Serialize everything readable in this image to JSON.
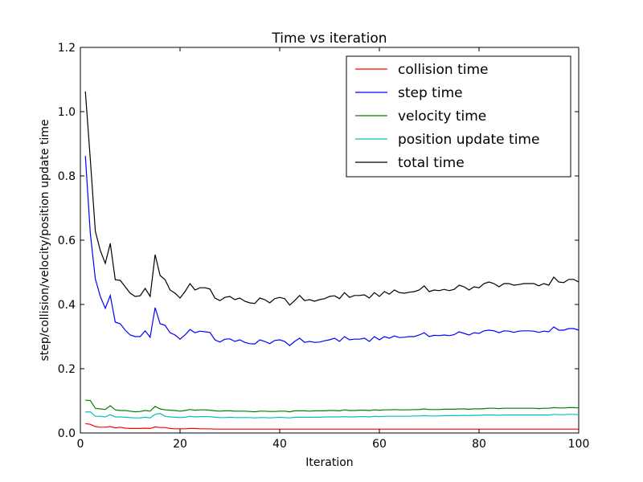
{
  "chart_data": {
    "type": "line",
    "title": "Time vs iteration",
    "xlabel": "Iteration",
    "ylabel": "step/collision/velocity/position update time",
    "xlim": [
      0,
      100
    ],
    "ylim": [
      0.0,
      1.2
    ],
    "xticks": [
      0,
      20,
      40,
      60,
      80,
      100
    ],
    "xtick_labels": [
      "0",
      "20",
      "40",
      "60",
      "80",
      "100"
    ],
    "yticks": [
      0.0,
      0.2,
      0.4,
      0.6,
      0.8,
      1.0,
      1.2
    ],
    "ytick_labels": [
      "0.0",
      "0.2",
      "0.4",
      "0.6",
      "0.8",
      "1.0",
      "1.2"
    ],
    "grid": false,
    "legend_position": "top-right",
    "x": [
      1,
      2,
      3,
      4,
      5,
      6,
      7,
      8,
      9,
      10,
      11,
      12,
      13,
      14,
      15,
      16,
      17,
      18,
      19,
      20,
      21,
      22,
      23,
      24,
      25,
      26,
      27,
      28,
      29,
      30,
      31,
      32,
      33,
      34,
      35,
      36,
      37,
      38,
      39,
      40,
      41,
      42,
      43,
      44,
      45,
      46,
      47,
      48,
      49,
      50,
      51,
      52,
      53,
      54,
      55,
      56,
      57,
      58,
      59,
      60,
      61,
      62,
      63,
      64,
      65,
      66,
      67,
      68,
      69,
      70,
      71,
      72,
      73,
      74,
      75,
      76,
      77,
      78,
      79,
      80,
      81,
      82,
      83,
      84,
      85,
      86,
      87,
      88,
      89,
      90,
      91,
      92,
      93,
      94,
      95,
      96,
      97,
      98,
      99,
      100
    ],
    "series": [
      {
        "name": "collision time",
        "color": "#ff0000",
        "values": [
          0.029,
          0.027,
          0.02,
          0.018,
          0.018,
          0.02,
          0.016,
          0.018,
          0.015,
          0.014,
          0.014,
          0.014,
          0.015,
          0.014,
          0.019,
          0.017,
          0.017,
          0.014,
          0.013,
          0.013,
          0.013,
          0.014,
          0.014,
          0.013,
          0.013,
          0.013,
          0.012,
          0.012,
          0.012,
          0.012,
          0.012,
          0.012,
          0.012,
          0.012,
          0.012,
          0.012,
          0.012,
          0.012,
          0.012,
          0.012,
          0.012,
          0.012,
          0.012,
          0.012,
          0.012,
          0.012,
          0.012,
          0.012,
          0.012,
          0.012,
          0.012,
          0.012,
          0.012,
          0.012,
          0.012,
          0.012,
          0.012,
          0.012,
          0.012,
          0.012,
          0.012,
          0.012,
          0.012,
          0.012,
          0.012,
          0.012,
          0.012,
          0.012,
          0.012,
          0.012,
          0.012,
          0.012,
          0.012,
          0.012,
          0.012,
          0.012,
          0.012,
          0.012,
          0.012,
          0.012,
          0.012,
          0.012,
          0.012,
          0.012,
          0.012,
          0.012,
          0.012,
          0.012,
          0.012,
          0.012,
          0.012,
          0.012,
          0.012,
          0.012,
          0.012,
          0.012,
          0.012,
          0.012,
          0.012,
          0.012
        ]
      },
      {
        "name": "step time",
        "color": "#0000ff",
        "values": [
          0.862,
          0.62,
          0.48,
          0.425,
          0.388,
          0.428,
          0.345,
          0.34,
          0.32,
          0.305,
          0.3,
          0.3,
          0.318,
          0.298,
          0.39,
          0.34,
          0.335,
          0.312,
          0.305,
          0.292,
          0.305,
          0.322,
          0.312,
          0.317,
          0.315,
          0.313,
          0.29,
          0.283,
          0.292,
          0.293,
          0.285,
          0.29,
          0.282,
          0.278,
          0.277,
          0.29,
          0.285,
          0.278,
          0.288,
          0.29,
          0.285,
          0.272,
          0.285,
          0.295,
          0.282,
          0.285,
          0.282,
          0.283,
          0.287,
          0.29,
          0.295,
          0.285,
          0.3,
          0.29,
          0.292,
          0.292,
          0.295,
          0.285,
          0.3,
          0.29,
          0.3,
          0.295,
          0.302,
          0.297,
          0.298,
          0.3,
          0.3,
          0.305,
          0.312,
          0.3,
          0.304,
          0.303,
          0.305,
          0.303,
          0.306,
          0.315,
          0.31,
          0.305,
          0.312,
          0.31,
          0.318,
          0.32,
          0.318,
          0.312,
          0.318,
          0.317,
          0.313,
          0.317,
          0.318,
          0.318,
          0.317,
          0.313,
          0.317,
          0.315,
          0.33,
          0.32,
          0.32,
          0.325,
          0.325,
          0.32
        ]
      },
      {
        "name": "velocity time",
        "color": "#008000",
        "values": [
          0.102,
          0.101,
          0.077,
          0.075,
          0.073,
          0.085,
          0.072,
          0.07,
          0.07,
          0.068,
          0.066,
          0.067,
          0.07,
          0.068,
          0.083,
          0.075,
          0.072,
          0.071,
          0.07,
          0.068,
          0.07,
          0.073,
          0.071,
          0.072,
          0.072,
          0.071,
          0.069,
          0.068,
          0.069,
          0.069,
          0.068,
          0.068,
          0.068,
          0.067,
          0.066,
          0.068,
          0.068,
          0.067,
          0.067,
          0.068,
          0.068,
          0.066,
          0.069,
          0.069,
          0.069,
          0.068,
          0.069,
          0.069,
          0.069,
          0.07,
          0.07,
          0.069,
          0.072,
          0.07,
          0.07,
          0.071,
          0.071,
          0.07,
          0.072,
          0.071,
          0.072,
          0.072,
          0.073,
          0.072,
          0.072,
          0.072,
          0.073,
          0.073,
          0.075,
          0.073,
          0.073,
          0.073,
          0.074,
          0.074,
          0.074,
          0.075,
          0.075,
          0.074,
          0.075,
          0.075,
          0.076,
          0.077,
          0.077,
          0.076,
          0.077,
          0.077,
          0.077,
          0.077,
          0.077,
          0.077,
          0.077,
          0.076,
          0.077,
          0.077,
          0.079,
          0.078,
          0.078,
          0.079,
          0.079,
          0.078
        ]
      },
      {
        "name": "position update time",
        "color": "#00bfbf",
        "values": [
          0.065,
          0.066,
          0.052,
          0.052,
          0.05,
          0.057,
          0.05,
          0.05,
          0.049,
          0.048,
          0.047,
          0.047,
          0.049,
          0.047,
          0.058,
          0.061,
          0.052,
          0.05,
          0.049,
          0.048,
          0.049,
          0.052,
          0.05,
          0.051,
          0.051,
          0.051,
          0.049,
          0.048,
          0.048,
          0.049,
          0.048,
          0.048,
          0.048,
          0.048,
          0.047,
          0.048,
          0.048,
          0.047,
          0.048,
          0.049,
          0.048,
          0.047,
          0.049,
          0.049,
          0.049,
          0.049,
          0.049,
          0.049,
          0.05,
          0.05,
          0.05,
          0.05,
          0.051,
          0.05,
          0.05,
          0.051,
          0.051,
          0.05,
          0.052,
          0.051,
          0.052,
          0.052,
          0.052,
          0.052,
          0.052,
          0.052,
          0.053,
          0.053,
          0.054,
          0.053,
          0.053,
          0.053,
          0.054,
          0.054,
          0.054,
          0.054,
          0.055,
          0.054,
          0.055,
          0.055,
          0.056,
          0.056,
          0.056,
          0.055,
          0.056,
          0.056,
          0.056,
          0.056,
          0.056,
          0.056,
          0.056,
          0.056,
          0.056,
          0.056,
          0.058,
          0.057,
          0.057,
          0.058,
          0.058,
          0.057
        ]
      },
      {
        "name": "total time",
        "color": "#000000",
        "values": [
          1.063,
          0.85,
          0.628,
          0.568,
          0.528,
          0.59,
          0.477,
          0.475,
          0.455,
          0.435,
          0.425,
          0.427,
          0.45,
          0.425,
          0.555,
          0.49,
          0.477,
          0.445,
          0.435,
          0.42,
          0.44,
          0.465,
          0.445,
          0.452,
          0.452,
          0.448,
          0.42,
          0.412,
          0.422,
          0.425,
          0.415,
          0.42,
          0.41,
          0.405,
          0.403,
          0.42,
          0.415,
          0.405,
          0.418,
          0.422,
          0.418,
          0.398,
          0.412,
          0.428,
          0.412,
          0.415,
          0.41,
          0.415,
          0.418,
          0.425,
          0.427,
          0.418,
          0.437,
          0.422,
          0.428,
          0.428,
          0.43,
          0.42,
          0.437,
          0.425,
          0.44,
          0.432,
          0.445,
          0.437,
          0.435,
          0.438,
          0.44,
          0.445,
          0.458,
          0.44,
          0.445,
          0.443,
          0.447,
          0.443,
          0.447,
          0.46,
          0.455,
          0.445,
          0.455,
          0.452,
          0.465,
          0.47,
          0.465,
          0.455,
          0.465,
          0.465,
          0.46,
          0.462,
          0.465,
          0.465,
          0.465,
          0.458,
          0.465,
          0.46,
          0.485,
          0.47,
          0.468,
          0.478,
          0.478,
          0.47
        ]
      }
    ]
  }
}
